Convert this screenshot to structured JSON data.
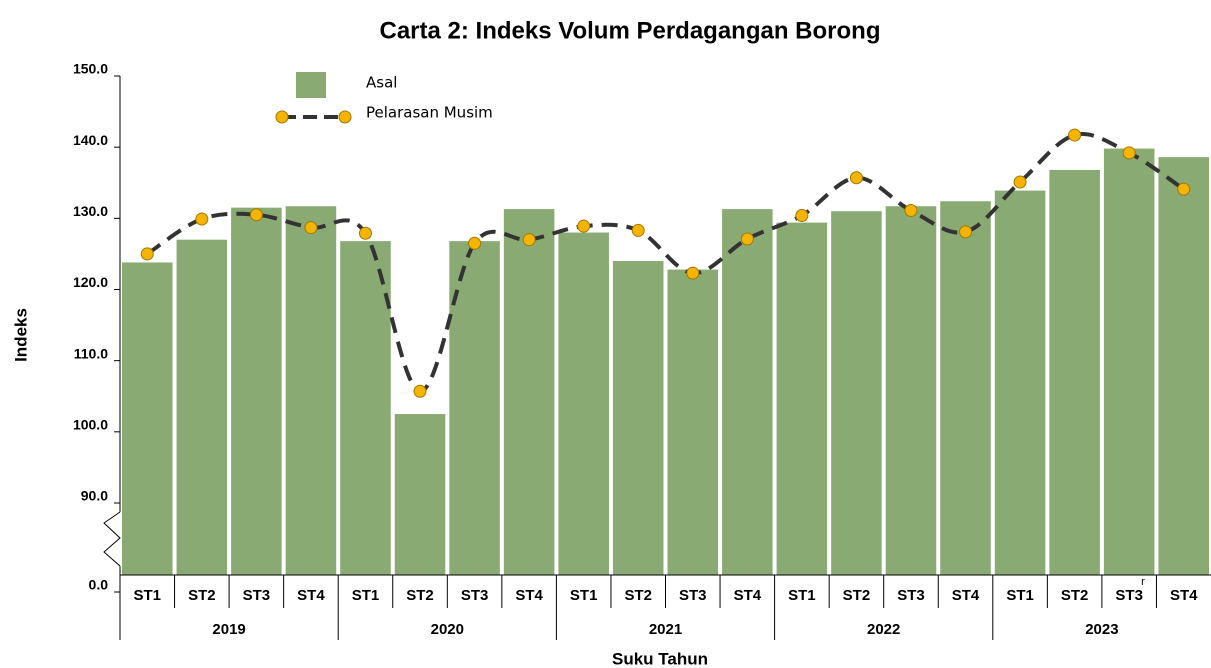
{
  "chart_data": {
    "type": "bar_line",
    "title": "Carta 2: Indeks Volum Perdagangan Borong",
    "y_label": "Indeks",
    "x_label": "Suku Tahun",
    "categories": [
      "ST1",
      "ST2",
      "ST3",
      "ST4",
      "ST1",
      "ST2",
      "ST3",
      "ST4",
      "ST1",
      "ST2",
      "ST3",
      "ST4",
      "ST1",
      "ST2",
      "ST3",
      "ST4",
      "ST1",
      "ST2",
      "ST3",
      "ST4"
    ],
    "groups": [
      {
        "label": "2019",
        "span": 4
      },
      {
        "label": "2020",
        "span": 4
      },
      {
        "label": "2021",
        "span": 4
      },
      {
        "label": "2022",
        "span": 4
      },
      {
        "label": "2023",
        "span": 4
      }
    ],
    "annotations": [
      {
        "text": "r",
        "index": 18
      }
    ],
    "series": [
      {
        "name": "Asal",
        "kind": "bar",
        "color": "#8aaa74",
        "values": [
          123.8,
          127.0,
          131.5,
          131.7,
          126.8,
          102.5,
          126.8,
          131.3,
          128.0,
          124.0,
          122.8,
          131.3,
          129.4,
          131.0,
          131.7,
          132.4,
          133.9,
          136.8,
          139.8,
          138.6
        ]
      },
      {
        "name": "Pelarasan Musim",
        "kind": "line",
        "color": "#333333",
        "marker_color": "#f5b400",
        "values": [
          125.0,
          129.9,
          130.5,
          128.7,
          127.9,
          105.7,
          126.5,
          127.0,
          128.9,
          128.3,
          122.3,
          127.1,
          130.4,
          135.7,
          131.1,
          128.1,
          135.1,
          141.7,
          139.2,
          134.1
        ]
      }
    ],
    "ylim": [
      0,
      150
    ],
    "axis_break": [
      0,
      90
    ],
    "yticks": [
      {
        "value": 0,
        "label": "0.0"
      },
      {
        "value": 90,
        "label": "90.0"
      },
      {
        "value": 100,
        "label": "100.0"
      },
      {
        "value": 110,
        "label": "110.0"
      },
      {
        "value": 120,
        "label": "120.0"
      },
      {
        "value": 130,
        "label": "130.0"
      },
      {
        "value": 140,
        "label": "140.0"
      },
      {
        "value": 150,
        "label": "150.0"
      }
    ],
    "grid": false
  }
}
